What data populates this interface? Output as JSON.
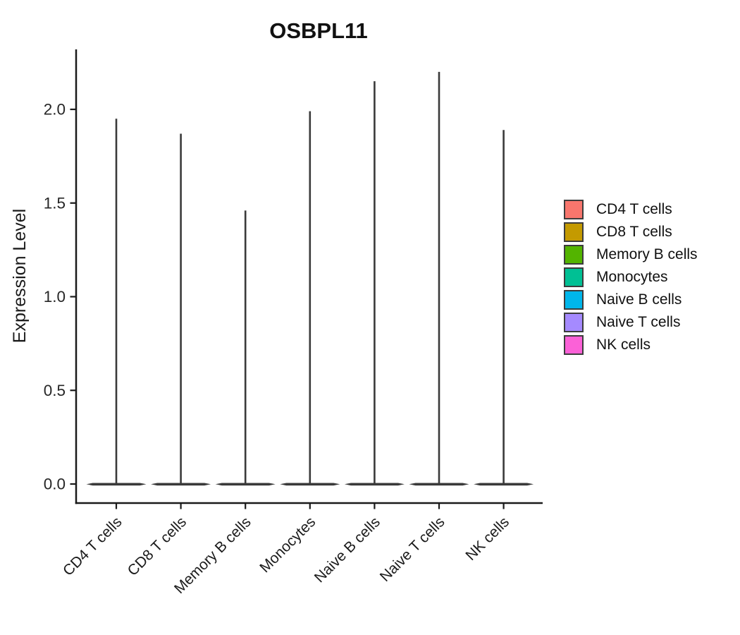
{
  "title": "OSBPL11",
  "y_axis_label": "Expression Level",
  "chart_data": {
    "type": "violin",
    "title": "OSBPL11",
    "ylabel": "Expression Level",
    "categories": [
      "CD4 T cells",
      "CD8 T cells",
      "Memory B cells",
      "Monocytes",
      "Naive B cells",
      "Naive T cells",
      "NK cells"
    ],
    "series": [
      {
        "name": "violin_max_expression",
        "values": [
          1.95,
          1.87,
          1.46,
          1.99,
          2.15,
          2.2,
          1.89
        ]
      }
    ],
    "baseline": 0.0,
    "shape_note": "each violin collapses to a wide flat base at expression 0 with a thin vertical spike up to its maximum",
    "y_ticks": [
      0.0,
      0.5,
      1.0,
      1.5,
      2.0
    ],
    "ylim": [
      -0.1,
      2.32
    ],
    "grid": false,
    "legend_position": "right",
    "colors": [
      "#F8766D",
      "#C49A00",
      "#53B400",
      "#00C094",
      "#00B6EB",
      "#A58AFF",
      "#FB61D7"
    ]
  },
  "legend": {
    "items": [
      {
        "label": "CD4 T cells",
        "color": "#F8766D"
      },
      {
        "label": "CD8 T cells",
        "color": "#C49A00"
      },
      {
        "label": "Memory B cells",
        "color": "#53B400"
      },
      {
        "label": "Monocytes",
        "color": "#00C094"
      },
      {
        "label": "Naive B cells",
        "color": "#00B6EB"
      },
      {
        "label": "Naive T cells",
        "color": "#A58AFF"
      },
      {
        "label": "NK cells",
        "color": "#FB61D7"
      }
    ]
  },
  "colors": {
    "axis": "#1a1a1a",
    "violin": "#3a3a3a",
    "tick_text": "#262626",
    "swatch_border": "#3c3c3c"
  }
}
